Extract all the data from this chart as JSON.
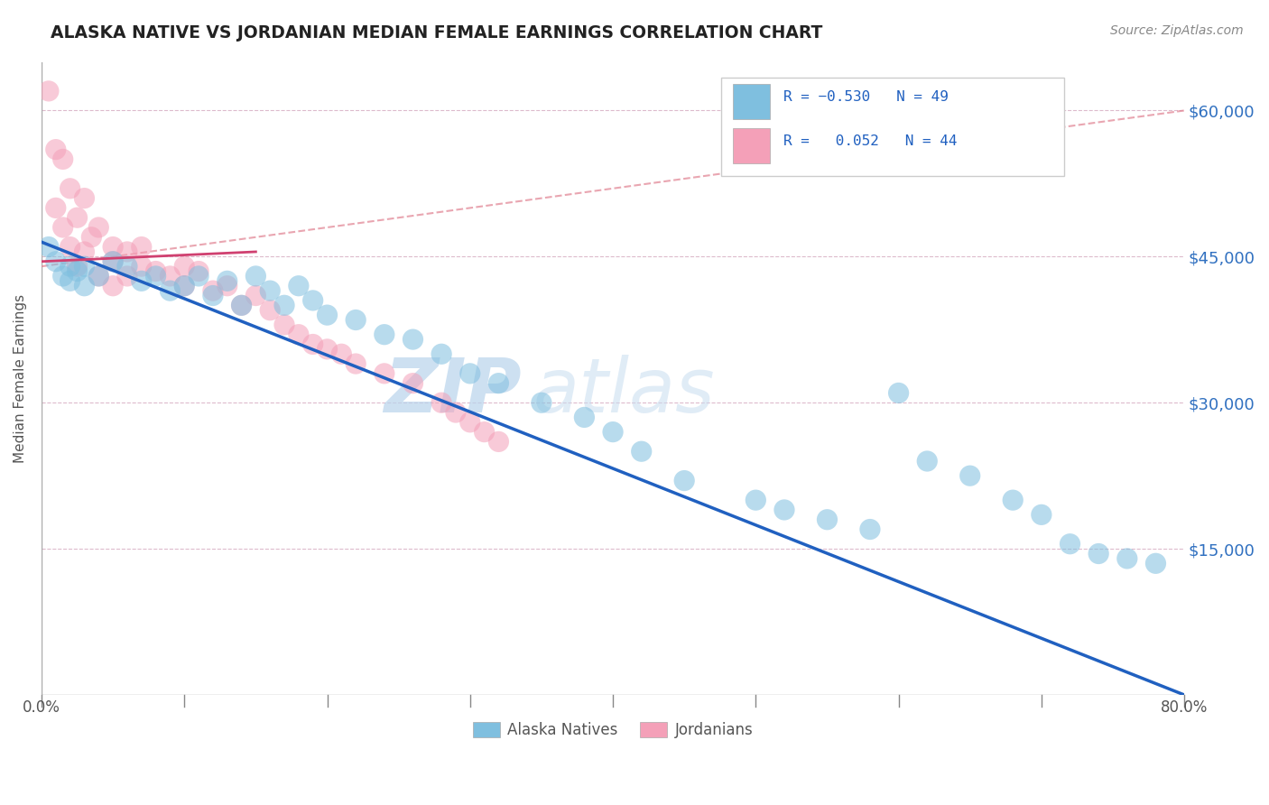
{
  "title": "ALASKA NATIVE VS JORDANIAN MEDIAN FEMALE EARNINGS CORRELATION CHART",
  "source": "Source: ZipAtlas.com",
  "ylabel": "Median Female Earnings",
  "xlim": [
    0.0,
    0.8
  ],
  "ylim": [
    0,
    65000
  ],
  "yticks": [
    0,
    15000,
    30000,
    45000,
    60000
  ],
  "ytick_labels": [
    "",
    "$15,000",
    "$30,000",
    "$45,000",
    "$60,000"
  ],
  "xticks": [
    0.0,
    0.1,
    0.2,
    0.3,
    0.4,
    0.5,
    0.6,
    0.7,
    0.8
  ],
  "color_blue": "#7fbfdf",
  "color_pink": "#f4a0b8",
  "color_blue_line": "#2060c0",
  "color_pink_line": "#d04070",
  "color_pink_dash": "#e08090",
  "watermark_zip": "ZIP",
  "watermark_atlas": "atlas",
  "alaska_x": [
    0.005,
    0.01,
    0.015,
    0.02,
    0.02,
    0.025,
    0.03,
    0.03,
    0.04,
    0.05,
    0.06,
    0.07,
    0.08,
    0.09,
    0.1,
    0.11,
    0.12,
    0.13,
    0.14,
    0.15,
    0.16,
    0.17,
    0.18,
    0.19,
    0.2,
    0.22,
    0.24,
    0.26,
    0.28,
    0.3,
    0.32,
    0.35,
    0.38,
    0.4,
    0.42,
    0.45,
    0.5,
    0.52,
    0.55,
    0.58,
    0.6,
    0.62,
    0.65,
    0.68,
    0.7,
    0.72,
    0.74,
    0.76,
    0.78
  ],
  "alaska_y": [
    46000,
    44500,
    43000,
    44000,
    42500,
    43500,
    44000,
    42000,
    43000,
    44500,
    44000,
    42500,
    43000,
    41500,
    42000,
    43000,
    41000,
    42500,
    40000,
    43000,
    41500,
    40000,
    42000,
    40500,
    39000,
    38500,
    37000,
    36500,
    35000,
    33000,
    32000,
    30000,
    28500,
    27000,
    25000,
    22000,
    20000,
    19000,
    18000,
    17000,
    31000,
    24000,
    22500,
    20000,
    18500,
    15500,
    14500,
    14000,
    13500
  ],
  "jordan_x": [
    0.005,
    0.01,
    0.01,
    0.015,
    0.015,
    0.02,
    0.02,
    0.025,
    0.025,
    0.03,
    0.03,
    0.035,
    0.04,
    0.04,
    0.05,
    0.05,
    0.05,
    0.06,
    0.06,
    0.07,
    0.07,
    0.08,
    0.09,
    0.1,
    0.1,
    0.11,
    0.12,
    0.13,
    0.14,
    0.15,
    0.16,
    0.17,
    0.18,
    0.19,
    0.2,
    0.21,
    0.22,
    0.24,
    0.26,
    0.28,
    0.29,
    0.3,
    0.31,
    0.32
  ],
  "jordan_y": [
    62000,
    56000,
    50000,
    55000,
    48000,
    52000,
    46000,
    49000,
    44000,
    51000,
    45500,
    47000,
    48000,
    43000,
    46000,
    44500,
    42000,
    45500,
    43000,
    46000,
    44000,
    43500,
    43000,
    44000,
    42000,
    43500,
    41500,
    42000,
    40000,
    41000,
    39500,
    38000,
    37000,
    36000,
    35500,
    35000,
    34000,
    33000,
    32000,
    30000,
    29000,
    28000,
    27000,
    26000
  ]
}
